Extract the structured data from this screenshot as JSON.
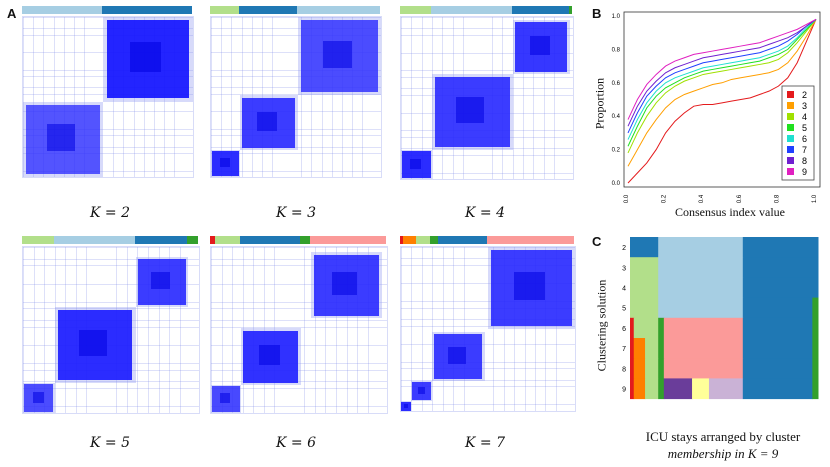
{
  "panels": {
    "A": "A",
    "B": "B",
    "C": "C"
  },
  "heatmaps": [
    {
      "caption": "K = 2"
    },
    {
      "caption": "K = 3"
    },
    {
      "caption": "K = 4"
    },
    {
      "caption": "K = 5"
    },
    {
      "caption": "K = 6"
    },
    {
      "caption": "K = 7"
    }
  ],
  "cluster_colors": {
    "c1": "#a6cee3",
    "c2": "#1f78b4",
    "c3": "#b2df8a",
    "c4": "#33a02c",
    "c5": "#fb9a99",
    "c6": "#e31a1c",
    "c7": "#fdbf6f",
    "c8": "#ff7f00",
    "c9": "#cab2d6",
    "c10": "#6a3d9a",
    "c11": "#ffff99"
  },
  "chart_data": [
    {
      "type": "line",
      "panel": "B",
      "xlabel": "Consensus index value",
      "ylabel": "Proportion",
      "xlim": [
        0,
        1
      ],
      "ylim": [
        0,
        1
      ],
      "xticks": [
        "0.0",
        "0.2",
        "0.4",
        "0.6",
        "0.8",
        "1.0"
      ],
      "yticks": [
        "0.0",
        "0.2",
        "0.4",
        "0.6",
        "0.8",
        "1.0"
      ],
      "legend_position": "right",
      "series": [
        {
          "name": "2",
          "color": "#e41a1c",
          "x": [
            0,
            0.05,
            0.1,
            0.15,
            0.2,
            0.25,
            0.3,
            0.35,
            0.4,
            0.45,
            0.5,
            0.55,
            0.6,
            0.65,
            0.7,
            0.75,
            0.8,
            0.85,
            0.9,
            0.95,
            1.0
          ],
          "y": [
            0.0,
            0.06,
            0.12,
            0.2,
            0.3,
            0.37,
            0.42,
            0.46,
            0.47,
            0.47,
            0.48,
            0.49,
            0.5,
            0.51,
            0.53,
            0.55,
            0.58,
            0.63,
            0.72,
            0.85,
            0.98
          ]
        },
        {
          "name": "3",
          "color": "#ff9f00",
          "x": [
            0,
            0.05,
            0.1,
            0.15,
            0.2,
            0.25,
            0.3,
            0.35,
            0.4,
            0.45,
            0.5,
            0.55,
            0.6,
            0.65,
            0.7,
            0.75,
            0.8,
            0.85,
            0.9,
            0.95,
            1.0
          ],
          "y": [
            0.1,
            0.2,
            0.3,
            0.38,
            0.45,
            0.5,
            0.53,
            0.55,
            0.57,
            0.59,
            0.6,
            0.62,
            0.63,
            0.64,
            0.65,
            0.66,
            0.68,
            0.72,
            0.79,
            0.88,
            0.98
          ]
        },
        {
          "name": "4",
          "color": "#a0e000",
          "x": [
            0,
            0.05,
            0.1,
            0.15,
            0.2,
            0.25,
            0.3,
            0.35,
            0.4,
            0.45,
            0.5,
            0.55,
            0.6,
            0.65,
            0.7,
            0.75,
            0.8,
            0.85,
            0.9,
            0.95,
            1.0
          ],
          "y": [
            0.18,
            0.3,
            0.4,
            0.48,
            0.54,
            0.58,
            0.61,
            0.63,
            0.65,
            0.66,
            0.67,
            0.68,
            0.69,
            0.7,
            0.71,
            0.72,
            0.74,
            0.78,
            0.84,
            0.91,
            0.98
          ]
        },
        {
          "name": "5",
          "color": "#20e020",
          "x": [
            0,
            0.05,
            0.1,
            0.15,
            0.2,
            0.25,
            0.3,
            0.35,
            0.4,
            0.45,
            0.5,
            0.55,
            0.6,
            0.65,
            0.7,
            0.75,
            0.8,
            0.85,
            0.9,
            0.95,
            1.0
          ],
          "y": [
            0.22,
            0.34,
            0.45,
            0.52,
            0.57,
            0.6,
            0.63,
            0.65,
            0.67,
            0.68,
            0.69,
            0.7,
            0.71,
            0.72,
            0.73,
            0.75,
            0.77,
            0.8,
            0.86,
            0.92,
            0.98
          ]
        },
        {
          "name": "6",
          "color": "#20e0d0",
          "x": [
            0,
            0.05,
            0.1,
            0.15,
            0.2,
            0.25,
            0.3,
            0.35,
            0.4,
            0.45,
            0.5,
            0.55,
            0.6,
            0.65,
            0.7,
            0.75,
            0.8,
            0.85,
            0.9,
            0.95,
            1.0
          ],
          "y": [
            0.26,
            0.38,
            0.48,
            0.55,
            0.6,
            0.63,
            0.65,
            0.67,
            0.69,
            0.7,
            0.71,
            0.72,
            0.73,
            0.74,
            0.75,
            0.77,
            0.79,
            0.82,
            0.87,
            0.93,
            0.98
          ]
        },
        {
          "name": "7",
          "color": "#2040ff",
          "x": [
            0,
            0.05,
            0.1,
            0.15,
            0.2,
            0.25,
            0.3,
            0.35,
            0.4,
            0.45,
            0.5,
            0.55,
            0.6,
            0.65,
            0.7,
            0.75,
            0.8,
            0.85,
            0.9,
            0.95,
            1.0
          ],
          "y": [
            0.3,
            0.42,
            0.52,
            0.58,
            0.63,
            0.66,
            0.68,
            0.7,
            0.72,
            0.73,
            0.74,
            0.75,
            0.76,
            0.77,
            0.78,
            0.8,
            0.82,
            0.85,
            0.89,
            0.94,
            0.98
          ]
        },
        {
          "name": "8",
          "color": "#7020d0",
          "x": [
            0,
            0.05,
            0.1,
            0.15,
            0.2,
            0.25,
            0.3,
            0.35,
            0.4,
            0.45,
            0.5,
            0.55,
            0.6,
            0.65,
            0.7,
            0.75,
            0.8,
            0.85,
            0.9,
            0.95,
            1.0
          ],
          "y": [
            0.34,
            0.46,
            0.55,
            0.61,
            0.66,
            0.69,
            0.71,
            0.73,
            0.75,
            0.76,
            0.77,
            0.78,
            0.79,
            0.8,
            0.81,
            0.83,
            0.85,
            0.87,
            0.9,
            0.94,
            0.98
          ]
        },
        {
          "name": "9",
          "color": "#e020c0",
          "x": [
            0,
            0.05,
            0.1,
            0.15,
            0.2,
            0.25,
            0.3,
            0.35,
            0.4,
            0.45,
            0.5,
            0.55,
            0.6,
            0.65,
            0.7,
            0.75,
            0.8,
            0.85,
            0.9,
            0.95,
            1.0
          ],
          "y": [
            0.38,
            0.5,
            0.59,
            0.65,
            0.7,
            0.73,
            0.75,
            0.77,
            0.78,
            0.79,
            0.8,
            0.81,
            0.82,
            0.83,
            0.84,
            0.86,
            0.88,
            0.9,
            0.92,
            0.95,
            0.98
          ]
        }
      ]
    },
    {
      "type": "heatmap",
      "panel": "C",
      "ylabel": "Clustering solution",
      "caption_line1": "ICU stays arranged by cluster",
      "caption_line2": "membership in K = 9",
      "rows": [
        "2",
        "3",
        "4",
        "5",
        "6",
        "7",
        "8",
        "9"
      ]
    }
  ]
}
